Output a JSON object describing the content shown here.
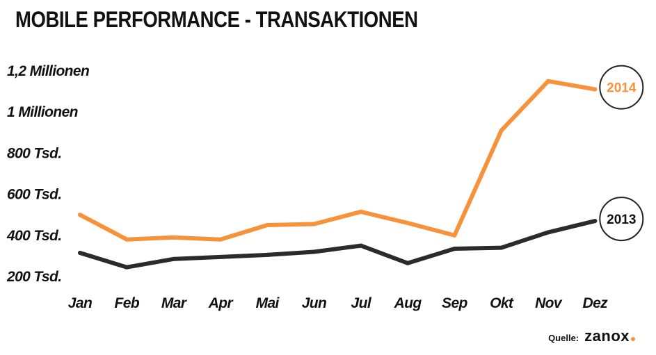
{
  "chart_data": {
    "type": "line",
    "title": "MOBILE PERFORMANCE - TRANSAKTIONEN",
    "categories": [
      "Jan",
      "Feb",
      "Mar",
      "Apr",
      "Mai",
      "Jun",
      "Jul",
      "Aug",
      "Sep",
      "Okt",
      "Nov",
      "Dez"
    ],
    "y_ticks": [
      {
        "value": 200000,
        "label": "200 Tsd."
      },
      {
        "value": 400000,
        "label": "400 Tsd."
      },
      {
        "value": 600000,
        "label": "600 Tsd."
      },
      {
        "value": 800000,
        "label": "800 Tsd."
      },
      {
        "value": 1000000,
        "label": "1 Millionen"
      },
      {
        "value": 1200000,
        "label": "1,2 Millionen"
      }
    ],
    "ylim": [
      200000,
      1200000
    ],
    "grid": false,
    "series": [
      {
        "name": "2014",
        "color": "#f7923a",
        "values": [
          500000,
          380000,
          390000,
          380000,
          450000,
          455000,
          515000,
          460000,
          400000,
          910000,
          1150000,
          1110000
        ]
      },
      {
        "name": "2013",
        "color": "#2b2b2b",
        "values": [
          315000,
          245000,
          285000,
          295000,
          305000,
          320000,
          350000,
          265000,
          335000,
          340000,
          415000,
          470000
        ]
      }
    ]
  },
  "source": {
    "label": "Quelle:",
    "logo": "zanox",
    "logo_dot_color": "#f7923a"
  }
}
